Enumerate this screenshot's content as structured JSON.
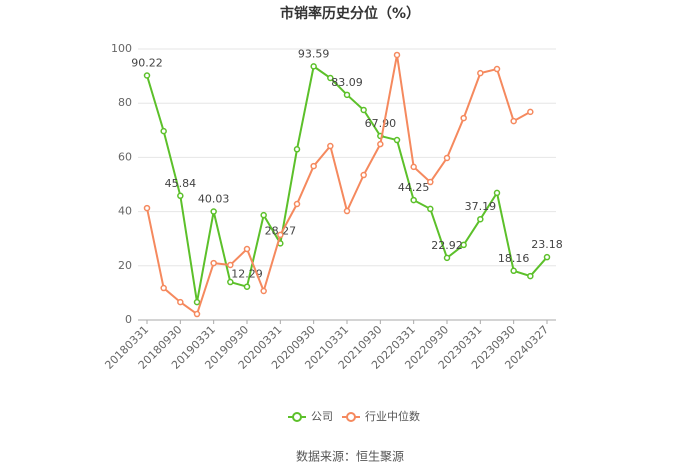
{
  "chart_data": {
    "type": "line",
    "title": "市销率历史分位（%）",
    "categories": [
      "20180331",
      null,
      "20180930",
      null,
      "20190331",
      null,
      "20190930",
      null,
      "20200331",
      null,
      "20200930",
      null,
      "20210331",
      null,
      "20210930",
      null,
      "20220331",
      null,
      "20220930",
      null,
      "20230331",
      null,
      "20230930",
      null,
      "20240327"
    ],
    "series": [
      {
        "name": "公司",
        "color": "#5cc02a",
        "values": [
          90.22,
          69.7,
          45.84,
          6.6,
          40.03,
          14,
          12.29,
          38.7,
          28.27,
          63,
          93.59,
          89.3,
          83.09,
          77.5,
          67.9,
          66.4,
          44.25,
          41,
          22.92,
          27.7,
          37.19,
          46.9,
          18.16,
          16.2,
          23.18
        ],
        "value_labels": [
          "90.22",
          null,
          "45.84",
          null,
          "40.03",
          null,
          "12.29",
          null,
          "28.27",
          null,
          "93.59",
          null,
          "83.09",
          null,
          "67.90",
          null,
          "44.25",
          null,
          "22.92",
          null,
          "37.19",
          null,
          "18.16",
          null,
          "23.18"
        ]
      },
      {
        "name": "行业中位数",
        "color": "#f5895e",
        "values": [
          41.3,
          11.8,
          6.6,
          2.2,
          21,
          20.3,
          26.2,
          10.7,
          31.4,
          42.8,
          56.8,
          64.2,
          40.2,
          53.5,
          64.9,
          97.8,
          56.5,
          50.9,
          59.8,
          74.5,
          91.1,
          92.6,
          73.4,
          76.8,
          null
        ]
      }
    ],
    "ylim": [
      0,
      100
    ],
    "yticks": [
      0,
      20,
      40,
      60,
      80,
      100
    ],
    "grid": true,
    "legend": "bottom",
    "source": "数据来源：恒生聚源"
  }
}
